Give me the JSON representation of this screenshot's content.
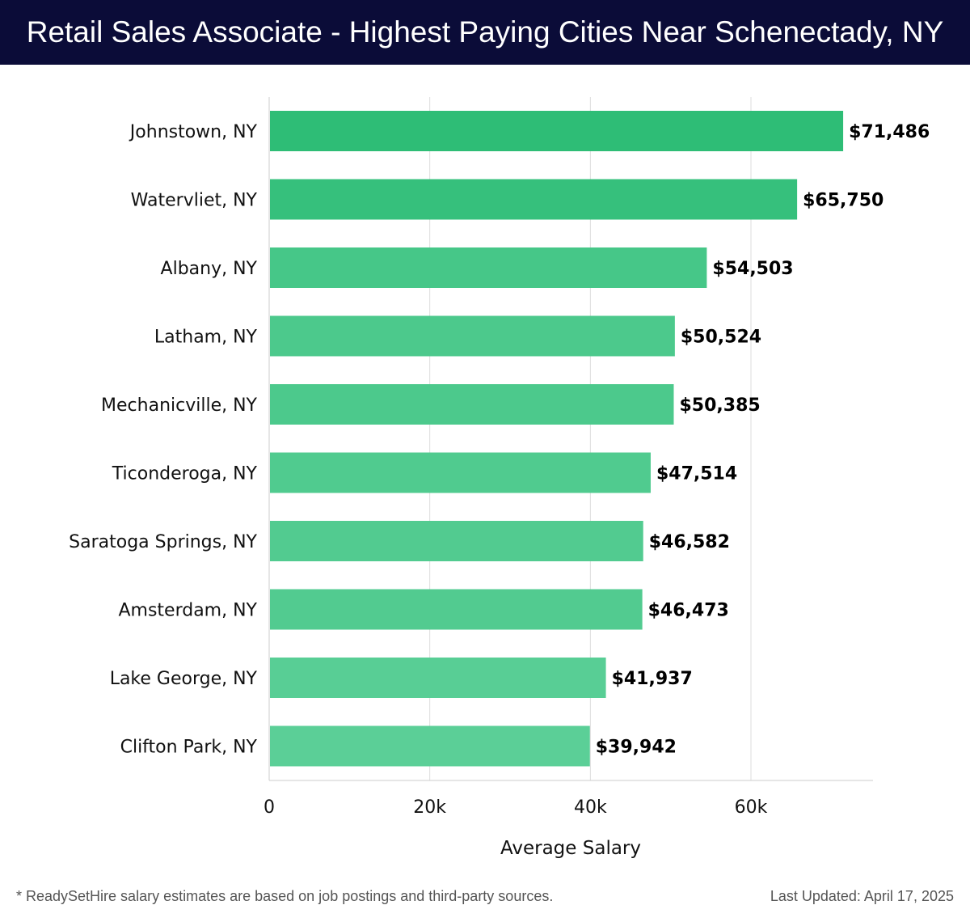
{
  "header": {
    "title": "Retail Sales Associate - Highest Paying Cities Near Schenectady, NY"
  },
  "chart_data": {
    "type": "bar",
    "orientation": "horizontal",
    "title": "Retail Sales Associate - Highest Paying Cities Near Schenectady, NY",
    "xlabel": "Average Salary",
    "ylabel": "",
    "xlim": [
      0,
      75000
    ],
    "xticks": [
      0,
      20000,
      40000,
      60000
    ],
    "xtick_labels": [
      "0",
      "20k",
      "40k",
      "60k"
    ],
    "grid": true,
    "categories": [
      "Johnstown, NY",
      "Watervliet, NY",
      "Albany, NY",
      "Latham, NY",
      "Mechanicville, NY",
      "Ticonderoga, NY",
      "Saratoga Springs, NY",
      "Amsterdam, NY",
      "Lake George, NY",
      "Clifton Park, NY"
    ],
    "values": [
      71486,
      65750,
      54503,
      50524,
      50385,
      47514,
      46582,
      46473,
      41937,
      39942
    ],
    "value_labels": [
      "$71,486",
      "$65,750",
      "$54,503",
      "$50,524",
      "$50,385",
      "$47,514",
      "$46,582",
      "$46,473",
      "$41,937",
      "$39,942"
    ],
    "colors": {
      "bar_dark": "#2ebd76",
      "bar_light": "#5bcf97",
      "grid": "#dddddd",
      "axis": "#cccccc",
      "label": "#000000"
    }
  },
  "footer": {
    "note": "* ReadySetHire salary estimates are based on job postings and third-party sources.",
    "updated": "Last Updated: April 17, 2025"
  }
}
